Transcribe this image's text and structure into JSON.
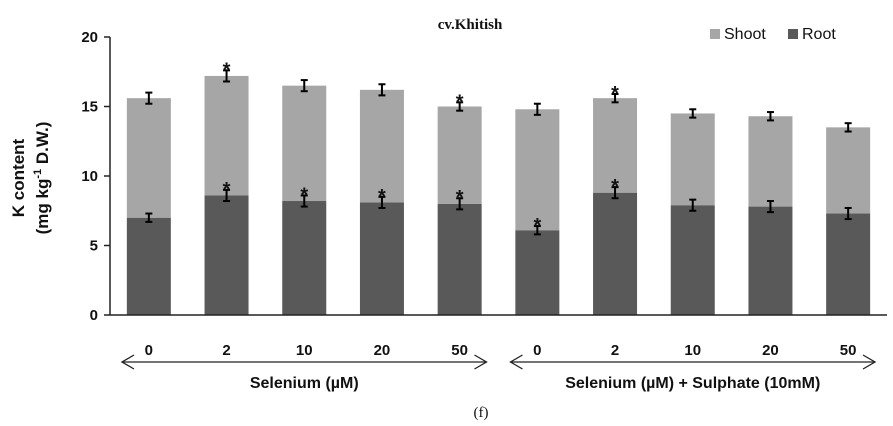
{
  "chart_data": {
    "type": "bar",
    "stacked": true,
    "title": "cv.Khitish",
    "ylabel": "K content",
    "ylabel_unit": {
      "prefix": "(mg kg",
      "superscript": "-1",
      "suffix": " D.W.)"
    },
    "ylim": [
      0,
      20
    ],
    "yticks": [
      "0",
      "5",
      "10",
      "15",
      "20"
    ],
    "categories": [
      "0",
      "2",
      "10",
      "20",
      "50",
      "0",
      "2",
      "10",
      "20",
      "50"
    ],
    "groups": [
      {
        "label": "Selenium (µM)",
        "start": 0,
        "end": 4
      },
      {
        "label": "Selenium (µM) + Sulphate (10mM)",
        "start": 5,
        "end": 9
      }
    ],
    "series": [
      {
        "name": "Root",
        "color": "#595959",
        "values": [
          7.0,
          8.6,
          8.2,
          8.1,
          8.0,
          6.1,
          8.8,
          7.9,
          7.8,
          7.3
        ],
        "errors": [
          0.3,
          0.4,
          0.4,
          0.4,
          0.4,
          0.3,
          0.4,
          0.4,
          0.4,
          0.4
        ],
        "significant": [
          false,
          true,
          true,
          true,
          true,
          true,
          true,
          false,
          false,
          false
        ]
      },
      {
        "name": "Shoot",
        "color": "#a6a6a6",
        "totals": [
          15.6,
          17.2,
          16.5,
          16.2,
          15.0,
          14.8,
          15.6,
          14.5,
          14.3,
          13.5
        ],
        "errors": [
          0.4,
          0.4,
          0.4,
          0.4,
          0.3,
          0.4,
          0.3,
          0.3,
          0.3,
          0.3
        ],
        "significant": [
          false,
          true,
          false,
          false,
          true,
          false,
          true,
          false,
          false,
          false
        ]
      }
    ],
    "legend": {
      "position": "top-right",
      "order": [
        "Shoot",
        "Root"
      ]
    },
    "significance_marker": "*",
    "caption": "(f)"
  }
}
